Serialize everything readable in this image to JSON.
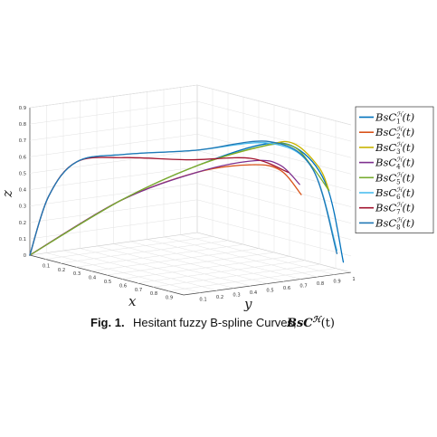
{
  "chart_data": {
    "type": "line",
    "dimension": "3d",
    "axes": {
      "x": {
        "label": "x",
        "ticks": [
          "0.1",
          "0.2",
          "0.3",
          "0.4",
          "0.5",
          "0.6",
          "0.7",
          "0.8",
          "0.9"
        ],
        "range": [
          0,
          1
        ]
      },
      "y": {
        "label": "y",
        "ticks": [
          "0.1",
          "0.2",
          "0.3",
          "0.4",
          "0.5",
          "0.6",
          "0.7",
          "0.8",
          "0.9",
          "1"
        ],
        "range": [
          0,
          1
        ]
      },
      "z": {
        "label": "z",
        "ticks": [
          "0",
          "0.1",
          "0.2",
          "0.3",
          "0.4",
          "0.5",
          "0.6",
          "0.7",
          "0.8",
          "0.9"
        ],
        "range": [
          0,
          0.9
        ]
      }
    },
    "grid": true,
    "legend_position": "right",
    "series": [
      {
        "name": "BsC_1^H(t)",
        "base": "BsC",
        "sup": "ℋ",
        "sub": "1",
        "arg": "(t)",
        "color": "#0072bd",
        "points": [
          [
            0,
            0,
            0
          ],
          [
            0.28,
            0.28,
            0.36
          ],
          [
            0.52,
            0.52,
            0.6
          ],
          [
            0.72,
            0.74,
            0.75
          ],
          [
            0.82,
            0.86,
            0.72
          ],
          [
            0.9,
            0.95,
            0.5
          ],
          [
            0.95,
            1.0,
            0.05
          ]
        ]
      },
      {
        "name": "BsC_2^H(t)",
        "base": "BsC",
        "sup": "ℋ",
        "sub": "2",
        "arg": "(t)",
        "color": "#d95319",
        "points": [
          [
            0,
            0,
            0
          ],
          [
            0.28,
            0.28,
            0.36
          ],
          [
            0.52,
            0.52,
            0.56
          ],
          [
            0.68,
            0.7,
            0.62
          ],
          [
            0.78,
            0.78,
            0.6
          ],
          [
            0.85,
            0.84,
            0.46
          ]
        ]
      },
      {
        "name": "BsC_3^H(t)",
        "base": "BsC",
        "sup": "ℋ",
        "sub": "3",
        "arg": "(t)",
        "color": "#c8b400",
        "points": [
          [
            0,
            0,
            0
          ],
          [
            0.28,
            0.28,
            0.36
          ],
          [
            0.52,
            0.52,
            0.6
          ],
          [
            0.72,
            0.74,
            0.74
          ],
          [
            0.8,
            0.84,
            0.76
          ],
          [
            0.88,
            0.92,
            0.62
          ],
          [
            0.9,
            0.96,
            0.48
          ]
        ]
      },
      {
        "name": "BsC_4^H(t)",
        "base": "BsC",
        "sup": "ℋ",
        "sub": "4",
        "arg": "(t)",
        "color": "#7e2f8e",
        "points": [
          [
            0,
            0,
            0
          ],
          [
            0.28,
            0.28,
            0.36
          ],
          [
            0.52,
            0.52,
            0.56
          ],
          [
            0.7,
            0.7,
            0.65
          ],
          [
            0.78,
            0.78,
            0.63
          ],
          [
            0.84,
            0.84,
            0.52
          ]
        ]
      },
      {
        "name": "BsC_5^H(t)",
        "base": "BsC",
        "sup": "ℋ",
        "sub": "5",
        "arg": "(t)",
        "color": "#77ac30",
        "points": [
          [
            0,
            0,
            0
          ],
          [
            0.28,
            0.28,
            0.36
          ],
          [
            0.52,
            0.52,
            0.6
          ],
          [
            0.72,
            0.74,
            0.74
          ],
          [
            0.8,
            0.84,
            0.74
          ],
          [
            0.86,
            0.9,
            0.62
          ],
          [
            0.9,
            0.96,
            0.48
          ]
        ]
      },
      {
        "name": "BsC_6^H(t)",
        "base": "BsC",
        "sup": "ℋ",
        "sub": "6",
        "arg": "(t)",
        "color": "#4dbeee",
        "points": [
          [
            0,
            0,
            0
          ],
          [
            0.1,
            0.02,
            0.38
          ],
          [
            0.24,
            0.06,
            0.62
          ],
          [
            0.44,
            0.16,
            0.7
          ],
          [
            0.64,
            0.4,
            0.74
          ],
          [
            0.8,
            0.7,
            0.78
          ],
          [
            0.88,
            0.88,
            0.62
          ],
          [
            0.93,
            0.98,
            0.12
          ]
        ]
      },
      {
        "name": "BsC_7^H(t)",
        "base": "BsC",
        "sup": "ℋ",
        "sub": "7",
        "arg": "(t)",
        "color": "#a2142f",
        "points": [
          [
            0,
            0,
            0
          ],
          [
            0.1,
            0.02,
            0.38
          ],
          [
            0.24,
            0.06,
            0.62
          ],
          [
            0.44,
            0.16,
            0.68
          ],
          [
            0.62,
            0.38,
            0.68
          ],
          [
            0.76,
            0.62,
            0.69
          ],
          [
            0.83,
            0.78,
            0.6
          ]
        ]
      },
      {
        "name": "BsC_8^H(t)",
        "base": "BsC",
        "sup": "ℋ",
        "sub": "8",
        "arg": "(t)",
        "color": "#1f77b4",
        "points": [
          [
            0,
            0,
            0
          ],
          [
            0.1,
            0.02,
            0.38
          ],
          [
            0.24,
            0.06,
            0.62
          ],
          [
            0.44,
            0.16,
            0.7
          ],
          [
            0.64,
            0.4,
            0.74
          ],
          [
            0.8,
            0.7,
            0.79
          ],
          [
            0.88,
            0.88,
            0.62
          ],
          [
            0.93,
            0.98,
            0.1
          ]
        ]
      }
    ]
  },
  "caption": {
    "prefix": "Fig. 1.",
    "text": "Hesitant fuzzy B-spline Curves,",
    "symbol": "BsC",
    "symbol_sup": "ℋ",
    "symbol_arg": "(t)"
  }
}
